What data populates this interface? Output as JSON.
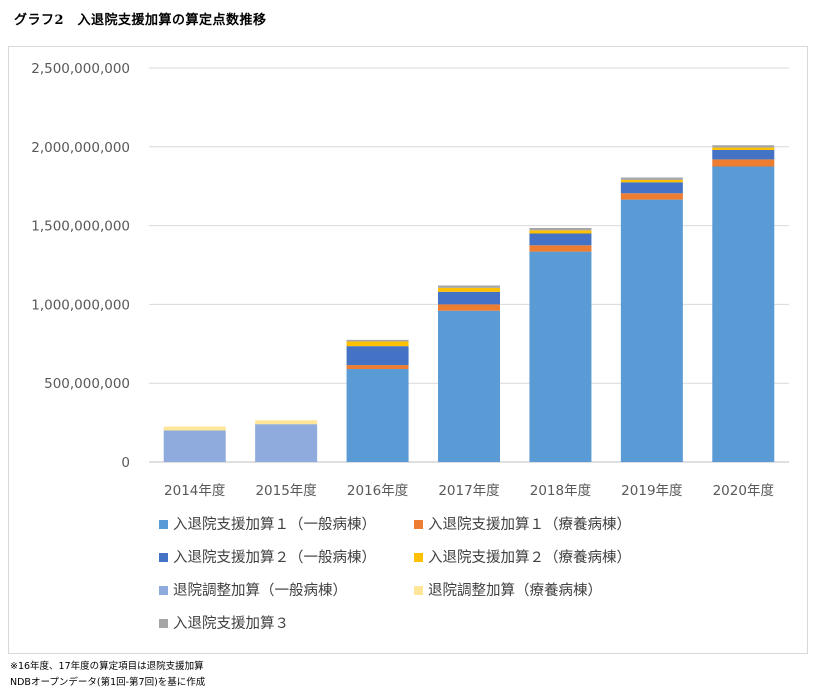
{
  "page": {
    "title": "グラフ2　入退院支援加算の算定点数推移",
    "notes": [
      "※16年度、17年度の算定項目は退院支援加算",
      "NDBオープンデータ(第1回-第7回)を基に作成"
    ]
  },
  "chart_data": {
    "type": "bar",
    "stacked": true,
    "categories": [
      "2014年度",
      "2015年度",
      "2016年度",
      "2017年度",
      "2018年度",
      "2019年度",
      "2020年度"
    ],
    "ylim": [
      0,
      2500000000
    ],
    "yticks": [
      0,
      500000000,
      1000000000,
      1500000000,
      2000000000,
      2500000000
    ],
    "ytick_labels": [
      "0",
      "500,000,000",
      "1,000,000,000",
      "1,500,000,000",
      "2,000,000,000",
      "2,500,000,000"
    ],
    "grid": true,
    "legend_position": "bottom",
    "series": [
      {
        "name": "入退院支援加算１（一般病棟）",
        "color": "#5b9bd5",
        "values": [
          0,
          0,
          590000000,
          960000000,
          1335000000,
          1665000000,
          1875000000
        ]
      },
      {
        "name": "入退院支援加算１（療養病棟）",
        "color": "#ed7d31",
        "values": [
          0,
          0,
          25000000,
          40000000,
          40000000,
          40000000,
          45000000
        ]
      },
      {
        "name": "入退院支援加算２（一般病棟）",
        "color": "#4472c4",
        "values": [
          0,
          0,
          120000000,
          80000000,
          75000000,
          70000000,
          60000000
        ]
      },
      {
        "name": "入退院支援加算２（療養病棟）",
        "color": "#ffc000",
        "values": [
          0,
          0,
          30000000,
          25000000,
          20000000,
          15000000,
          15000000
        ]
      },
      {
        "name": "退院調整加算（一般病棟）",
        "color": "#8faadc",
        "values": [
          200000000,
          240000000,
          0,
          0,
          0,
          0,
          0
        ]
      },
      {
        "name": "退院調整加算（療養病棟）",
        "color": "#ffe699",
        "values": [
          25000000,
          25000000,
          0,
          0,
          0,
          0,
          0
        ]
      },
      {
        "name": "入退院支援加算３",
        "color": "#a5a5a5",
        "values": [
          0,
          0,
          10000000,
          15000000,
          15000000,
          15000000,
          15000000
        ]
      }
    ]
  }
}
